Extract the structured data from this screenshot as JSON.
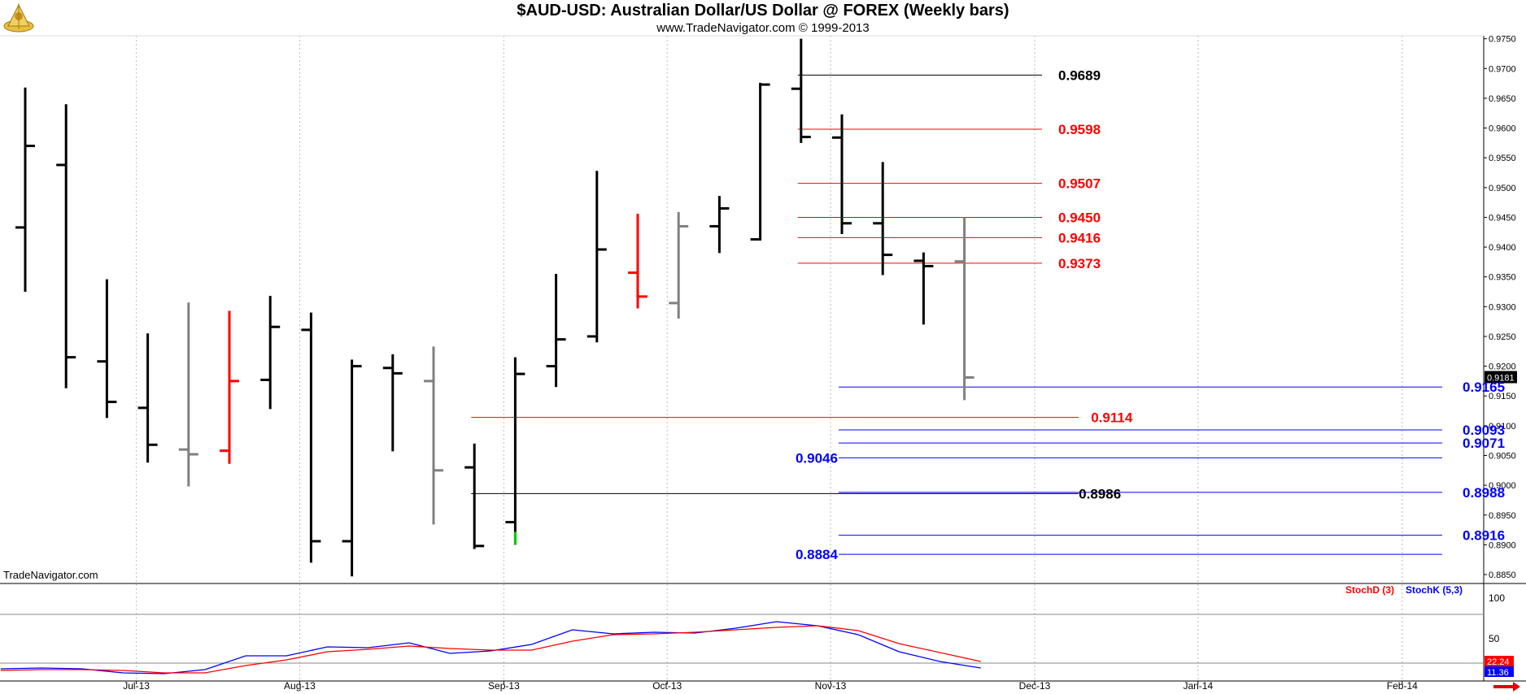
{
  "header": {
    "title": "$AUD-USD:  Australian Dollar/US Dollar @ FOREX  (Weekly bars)",
    "subtitle": "www.TradeNavigator.com © 1999-2013"
  },
  "watermark": "TradeNavigator.com",
  "chart_data": [
    {
      "type": "ohlc",
      "title": "$AUD-USD:  Australian Dollar/US Dollar @ FOREX  (Weekly bars)",
      "y_ticks": [
        "0.9750",
        "0.9700",
        "0.9650",
        "0.9600",
        "0.9550",
        "0.9500",
        "0.9450",
        "0.9400",
        "0.9350",
        "0.9300",
        "0.9250",
        "0.9200",
        "0.9150",
        "0.9100",
        "0.9050",
        "0.9000",
        "0.8950",
        "0.8900",
        "0.8850"
      ],
      "ylim": [
        0.8835,
        0.9755
      ],
      "x_ticks": [
        {
          "label": "Jul-13",
          "week": 3.0
        },
        {
          "label": "Aug-13",
          "week": 7.0
        },
        {
          "label": "Sep-13",
          "week": 12.0
        },
        {
          "label": "Oct-13",
          "week": 16.0
        },
        {
          "label": "Nov-13",
          "week": 20.0
        },
        {
          "label": "Dec-13",
          "week": 25.0
        },
        {
          "label": "Jan-14",
          "week": 29.0
        },
        {
          "label": "Feb-14",
          "week": 34.0
        }
      ],
      "last_price_label": "0.9181",
      "bars": [
        {
          "o": 0.9433,
          "h": 0.9668,
          "l": 0.9325,
          "c": 0.957,
          "color": "#000000"
        },
        {
          "o": 0.9538,
          "h": 0.964,
          "l": 0.9163,
          "c": 0.9215,
          "color": "#000000"
        },
        {
          "o": 0.9208,
          "h": 0.9346,
          "l": 0.9113,
          "c": 0.914,
          "color": "#000000"
        },
        {
          "o": 0.913,
          "h": 0.9255,
          "l": 0.9038,
          "c": 0.9068,
          "color": "#000000"
        },
        {
          "o": 0.906,
          "h": 0.9307,
          "l": 0.8998,
          "c": 0.9052,
          "color": "#808080"
        },
        {
          "o": 0.9058,
          "h": 0.9293,
          "l": 0.9036,
          "c": 0.9175,
          "color": "#ff0000"
        },
        {
          "o": 0.9177,
          "h": 0.9318,
          "l": 0.9128,
          "c": 0.9266,
          "color": "#000000"
        },
        {
          "o": 0.9261,
          "h": 0.929,
          "l": 0.887,
          "c": 0.8906,
          "color": "#000000"
        },
        {
          "o": 0.8906,
          "h": 0.9211,
          "l": 0.8847,
          "c": 0.92,
          "color": "#000000"
        },
        {
          "o": 0.9197,
          "h": 0.922,
          "l": 0.9057,
          "c": 0.9188,
          "color": "#000000"
        },
        {
          "o": 0.9175,
          "h": 0.9233,
          "l": 0.8934,
          "c": 0.9025,
          "color": "#808080"
        },
        {
          "o": 0.903,
          "h": 0.907,
          "l": 0.8893,
          "c": 0.8898,
          "color": "#000000"
        },
        {
          "o": 0.8938,
          "h": 0.9215,
          "l": 0.89,
          "c": 0.9187,
          "color": "#000000",
          "low_color": "#00cc00"
        },
        {
          "o": 0.92,
          "h": 0.9355,
          "l": 0.9165,
          "c": 0.9245,
          "color": "#000000"
        },
        {
          "o": 0.925,
          "h": 0.9528,
          "l": 0.924,
          "c": 0.9396,
          "color": "#000000"
        },
        {
          "o": 0.9357,
          "h": 0.9456,
          "l": 0.9297,
          "c": 0.9317,
          "color": "#ff0000"
        },
        {
          "o": 0.9306,
          "h": 0.9459,
          "l": 0.928,
          "c": 0.9435,
          "color": "#808080"
        },
        {
          "o": 0.9435,
          "h": 0.9486,
          "l": 0.939,
          "c": 0.9465,
          "color": "#000000"
        },
        {
          "o": 0.9413,
          "h": 0.9676,
          "l": 0.9411,
          "c": 0.9673,
          "color": "#000000"
        },
        {
          "o": 0.9666,
          "h": 0.975,
          "l": 0.9575,
          "c": 0.9585,
          "color": "#000000"
        },
        {
          "o": 0.9584,
          "h": 0.9623,
          "l": 0.9422,
          "c": 0.944,
          "color": "#000000"
        },
        {
          "o": 0.944,
          "h": 0.9543,
          "l": 0.9353,
          "c": 0.9387,
          "color": "#000000"
        },
        {
          "o": 0.9377,
          "h": 0.9391,
          "l": 0.927,
          "c": 0.9368,
          "color": "#000000"
        },
        {
          "o": 0.9376,
          "h": 0.945,
          "l": 0.9143,
          "c": 0.9181,
          "color": "#808080"
        }
      ],
      "levels": [
        {
          "value": 0.9689,
          "label": "0.9689",
          "color": "#000000",
          "x1": 19.0,
          "x2": 24.9,
          "label_x": 25.3,
          "label_align": "left"
        },
        {
          "value": 0.9598,
          "label": "0.9598",
          "color": "#ff0000",
          "x1": 19.0,
          "x2": 24.9,
          "label_x": 25.3,
          "label_align": "left"
        },
        {
          "value": 0.9507,
          "label": "0.9507",
          "color": "#ff0000",
          "x1": 19.0,
          "x2": 24.9,
          "label_x": 25.3,
          "label_align": "left"
        },
        {
          "value": 0.945,
          "label": "0.9450",
          "color": "#ff0000",
          "x1": 19.0,
          "x2": 24.9,
          "label_x": 25.3,
          "label_align": "left"
        },
        {
          "value": 0.9416,
          "label": "0.9416",
          "color": "#ff0000",
          "x1": 19.0,
          "x2": 24.9,
          "label_x": 25.3,
          "label_align": "left"
        },
        {
          "value": 0.9373,
          "label": "0.9373",
          "color": "#ff0000",
          "x1": 19.0,
          "x2": 24.9,
          "label_x": 25.3,
          "label_align": "left"
        },
        {
          "value": 0.9165,
          "label": "0.9165",
          "color": "#0000ff",
          "x1": 20.0,
          "x2": 34.7,
          "label_x": 35.2,
          "label_align": "left"
        },
        {
          "value": 0.9114,
          "label": "0.9114",
          "color": "#ff0000",
          "x1": 11.0,
          "x2": 25.8,
          "label_x": 26.1,
          "label_align": "left"
        },
        {
          "value": 0.9093,
          "label": "0.9093",
          "color": "#0000ff",
          "x1": 20.0,
          "x2": 34.7,
          "label_x": 35.2,
          "label_align": "left"
        },
        {
          "value": 0.9071,
          "label": "0.9071",
          "color": "#0000ff",
          "x1": 20.0,
          "x2": 34.7,
          "label_x": 35.2,
          "label_align": "left"
        },
        {
          "value": 0.9046,
          "label": "0.9046",
          "color": "#0000ff",
          "x1": 20.0,
          "x2": 34.7,
          "label_x": 19.9,
          "label_align": "right"
        },
        {
          "value": 0.8988,
          "label": "0.8988",
          "color": "#0000ff",
          "x1": 20.0,
          "x2": 34.7,
          "label_x": 35.2,
          "label_align": "left"
        },
        {
          "value": 0.8986,
          "label": "0.8986",
          "color": "#000000",
          "x1": 11.0,
          "x2": 25.8,
          "label_x": 25.8,
          "label_align": "left"
        },
        {
          "value": 0.8916,
          "label": "0.8916",
          "color": "#0000ff",
          "x1": 20.0,
          "x2": 34.7,
          "label_x": 35.2,
          "label_align": "left"
        },
        {
          "value": 0.8884,
          "label": "0.8884",
          "color": "#0000ff",
          "x1": 20.0,
          "x2": 34.7,
          "label_x": 19.9,
          "label_align": "right"
        }
      ]
    },
    {
      "type": "line",
      "ylim": [
        0,
        100
      ],
      "y_ticks": [
        "100",
        "50"
      ],
      "hlines": [
        80,
        20
      ],
      "legend": [
        {
          "name": "StochD (3)",
          "color": "#ff0000"
        },
        {
          "name": "StochK (5,3)",
          "color": "#0000ff"
        }
      ],
      "last_value_labels": [
        "22.24",
        "11.36"
      ],
      "x": [
        -0.6,
        0.4,
        1.4,
        2.4,
        3.4,
        4.4,
        5.4,
        6.4,
        7.4,
        8.4,
        9.4,
        10.4,
        11.4,
        12.4,
        13.4,
        14.4,
        15.4,
        16.4,
        17.4,
        18.4,
        19.4,
        20.4,
        21.4,
        22.4,
        23.4
      ],
      "series": [
        {
          "name": "StochK (5,3)",
          "color": "#0000ff",
          "values": [
            13,
            14,
            13,
            8,
            7,
            12,
            29,
            29,
            40,
            39,
            45,
            32,
            35,
            43,
            61,
            56,
            58,
            57,
            63,
            71,
            66,
            55,
            34,
            22,
            14
          ]
        },
        {
          "name": "StochD (3)",
          "color": "#ff0000",
          "values": [
            11,
            12,
            12,
            11,
            8,
            8,
            17,
            24,
            34,
            37,
            41,
            38,
            36,
            36,
            47,
            55,
            56,
            58,
            61,
            64,
            66,
            60,
            44,
            33,
            22
          ]
        }
      ]
    }
  ]
}
